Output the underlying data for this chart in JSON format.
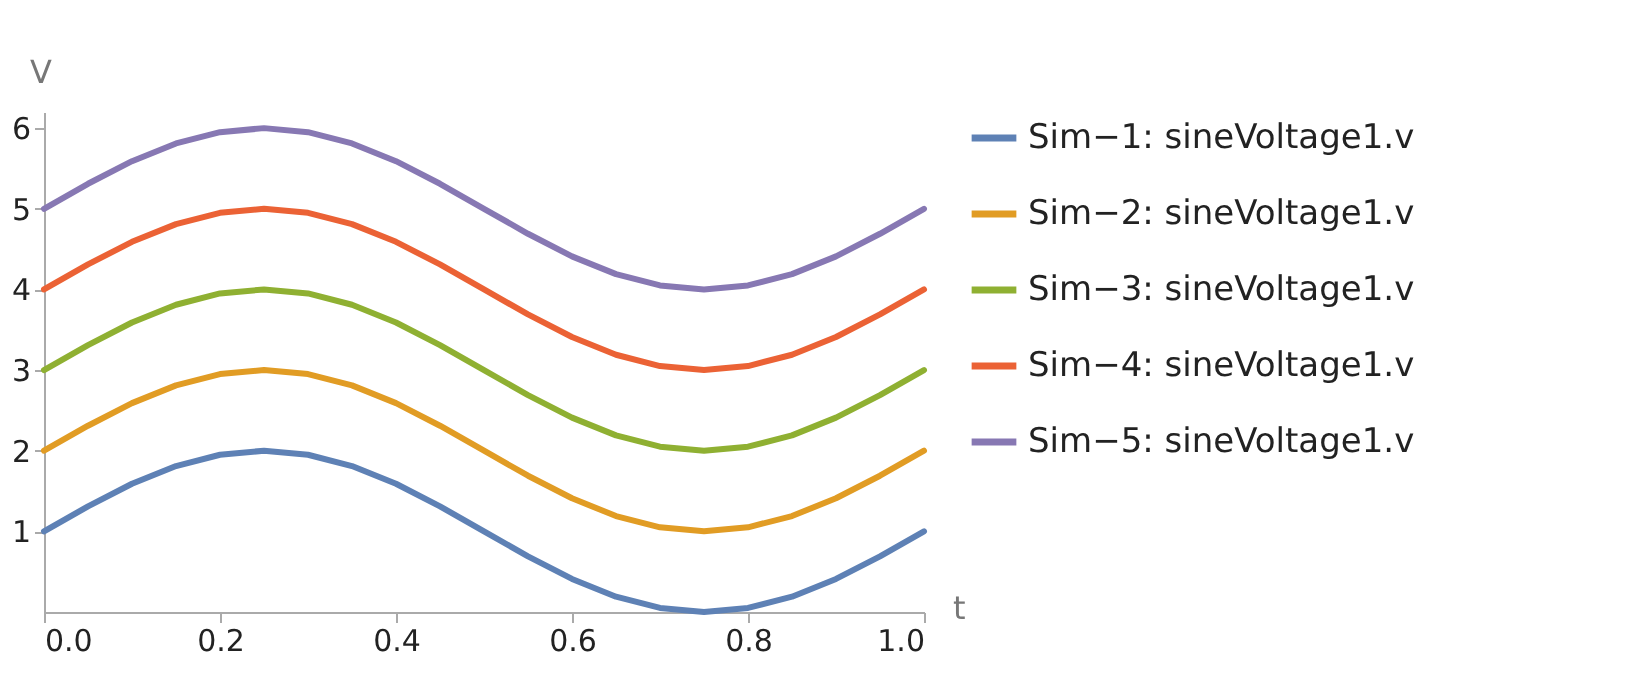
{
  "chart_data": {
    "type": "line",
    "xlabel": "t",
    "ylabel": "V",
    "x": [
      0,
      0.05,
      0.1,
      0.15,
      0.2,
      0.25,
      0.3,
      0.35,
      0.4,
      0.45,
      0.5,
      0.55,
      0.6,
      0.65,
      0.7,
      0.75,
      0.8,
      0.85,
      0.9,
      0.95,
      1
    ],
    "series": [
      {
        "name": "Sim−1: sineVoltage1.v",
        "color": "#5e81b5",
        "values": [
          1,
          1.31,
          1.59,
          1.81,
          1.95,
          2,
          1.95,
          1.81,
          1.59,
          1.31,
          1,
          0.69,
          0.41,
          0.19,
          0.05,
          0,
          0.05,
          0.19,
          0.41,
          0.69,
          1
        ]
      },
      {
        "name": "Sim−2: sineVoltage1.v",
        "color": "#e19c24",
        "values": [
          2,
          2.31,
          2.59,
          2.81,
          2.95,
          3,
          2.95,
          2.81,
          2.59,
          2.31,
          2,
          1.69,
          1.41,
          1.19,
          1.05,
          1,
          1.05,
          1.19,
          1.41,
          1.69,
          2
        ]
      },
      {
        "name": "Sim−3: sineVoltage1.v",
        "color": "#8fb032",
        "values": [
          3,
          3.31,
          3.59,
          3.81,
          3.95,
          4,
          3.95,
          3.81,
          3.59,
          3.31,
          3,
          2.69,
          2.41,
          2.19,
          2.05,
          2,
          2.05,
          2.19,
          2.41,
          2.69,
          3
        ]
      },
      {
        "name": "Sim−4: sineVoltage1.v",
        "color": "#eb6235",
        "values": [
          4,
          4.31,
          4.59,
          4.81,
          4.95,
          5,
          4.95,
          4.81,
          4.59,
          4.31,
          4,
          3.69,
          3.41,
          3.19,
          3.05,
          3,
          3.05,
          3.19,
          3.41,
          3.69,
          4
        ]
      },
      {
        "name": "Sim−5: sineVoltage1.v",
        "color": "#8778b3",
        "values": [
          5,
          5.31,
          5.59,
          5.81,
          5.95,
          6,
          5.95,
          5.81,
          5.59,
          5.31,
          5,
          4.69,
          4.41,
          4.19,
          4.05,
          4,
          4.05,
          4.19,
          4.41,
          4.69,
          5
        ]
      }
    ],
    "xlim": [
      0,
      1
    ],
    "ylim": [
      0,
      6.2
    ],
    "xticks": [
      {
        "value": 0,
        "label": "0.0"
      },
      {
        "value": 0.2,
        "label": "0.2"
      },
      {
        "value": 0.4,
        "label": "0.4"
      },
      {
        "value": 0.6,
        "label": "0.6"
      },
      {
        "value": 0.8,
        "label": "0.8"
      },
      {
        "value": 1,
        "label": "1.0"
      }
    ],
    "yticks": [
      1,
      2,
      3,
      4,
      5,
      6
    ],
    "legend": "right",
    "grid": false,
    "marker": "none",
    "line_style": "solid"
  }
}
